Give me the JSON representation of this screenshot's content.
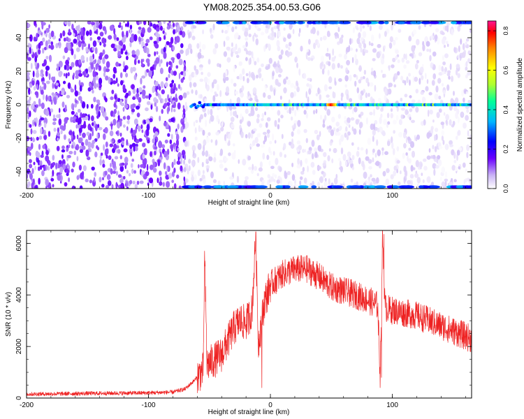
{
  "title": "YM08.2025.354.00.53.G06",
  "chart_data": [
    {
      "type": "heatmap",
      "xlabel": "Height of straight line (km)",
      "ylabel": "Frequency (Hz)",
      "xlim": [
        -200,
        165
      ],
      "ylim": [
        -50,
        50
      ],
      "x_ticks": [
        -200,
        -100,
        0,
        100
      ],
      "y_ticks": [
        -40,
        -20,
        0,
        20,
        40
      ],
      "colorbar": {
        "label": "Normalized spectral amplitude",
        "range": [
          0.0,
          0.85
        ],
        "ticks": [
          0.0,
          0.2,
          0.4,
          0.6,
          0.8
        ],
        "tick_labels": [
          "0.0",
          "0.2",
          "0.4",
          "0.6",
          "0.8"
        ],
        "colors": [
          "#ffffff",
          "#c9b3f5",
          "#6a00ff",
          "#0000ff",
          "#00b7ff",
          "#00ff99",
          "#adff2f",
          "#ffff00",
          "#ff8000",
          "#ff0000",
          "#ff1493"
        ]
      },
      "features": {
        "noise_boundary_km": -70,
        "carrier_frequency_hz": 0,
        "carrier_start_km": -65,
        "carrier_peak_km": 50,
        "carrier_peak_amplitude": 0.8,
        "edge_band_frequencies_hz": [
          -49,
          49
        ]
      }
    },
    {
      "type": "line",
      "xlabel": "Height of straight line (km)",
      "ylabel": "SNR (10 * v/v)",
      "xlim": [
        -200,
        165
      ],
      "ylim": [
        0,
        6500
      ],
      "x_ticks": [
        -200,
        -100,
        0,
        100
      ],
      "y_ticks": [
        0,
        2000,
        4000,
        6000
      ],
      "color": "#ee2222",
      "x": [
        -200,
        -150,
        -100,
        -80,
        -70,
        -62,
        -55,
        -54,
        -52,
        -45,
        -40,
        -35,
        -30,
        -25,
        -20,
        -15,
        -12,
        -10,
        -5,
        0,
        10,
        20,
        30,
        40,
        50,
        60,
        70,
        80,
        88,
        90,
        92,
        94,
        100,
        110,
        120,
        130,
        140,
        150,
        160,
        165
      ],
      "y": [
        150,
        180,
        200,
        230,
        350,
        700,
        1100,
        5600,
        1300,
        1500,
        1700,
        2200,
        2700,
        3000,
        2900,
        3400,
        6400,
        2100,
        3700,
        4400,
        4800,
        5000,
        5000,
        4700,
        4300,
        4150,
        4000,
        3800,
        3600,
        900,
        6300,
        3500,
        3400,
        3300,
        3200,
        3000,
        2800,
        2600,
        2400,
        2300
      ],
      "spikes": [
        {
          "x": -54,
          "y": 5700
        },
        {
          "x": -12,
          "y": 6450
        },
        {
          "x": -7,
          "y": 400
        },
        {
          "x": 91,
          "y": 800
        },
        {
          "x": 93,
          "y": 6350
        }
      ]
    }
  ]
}
